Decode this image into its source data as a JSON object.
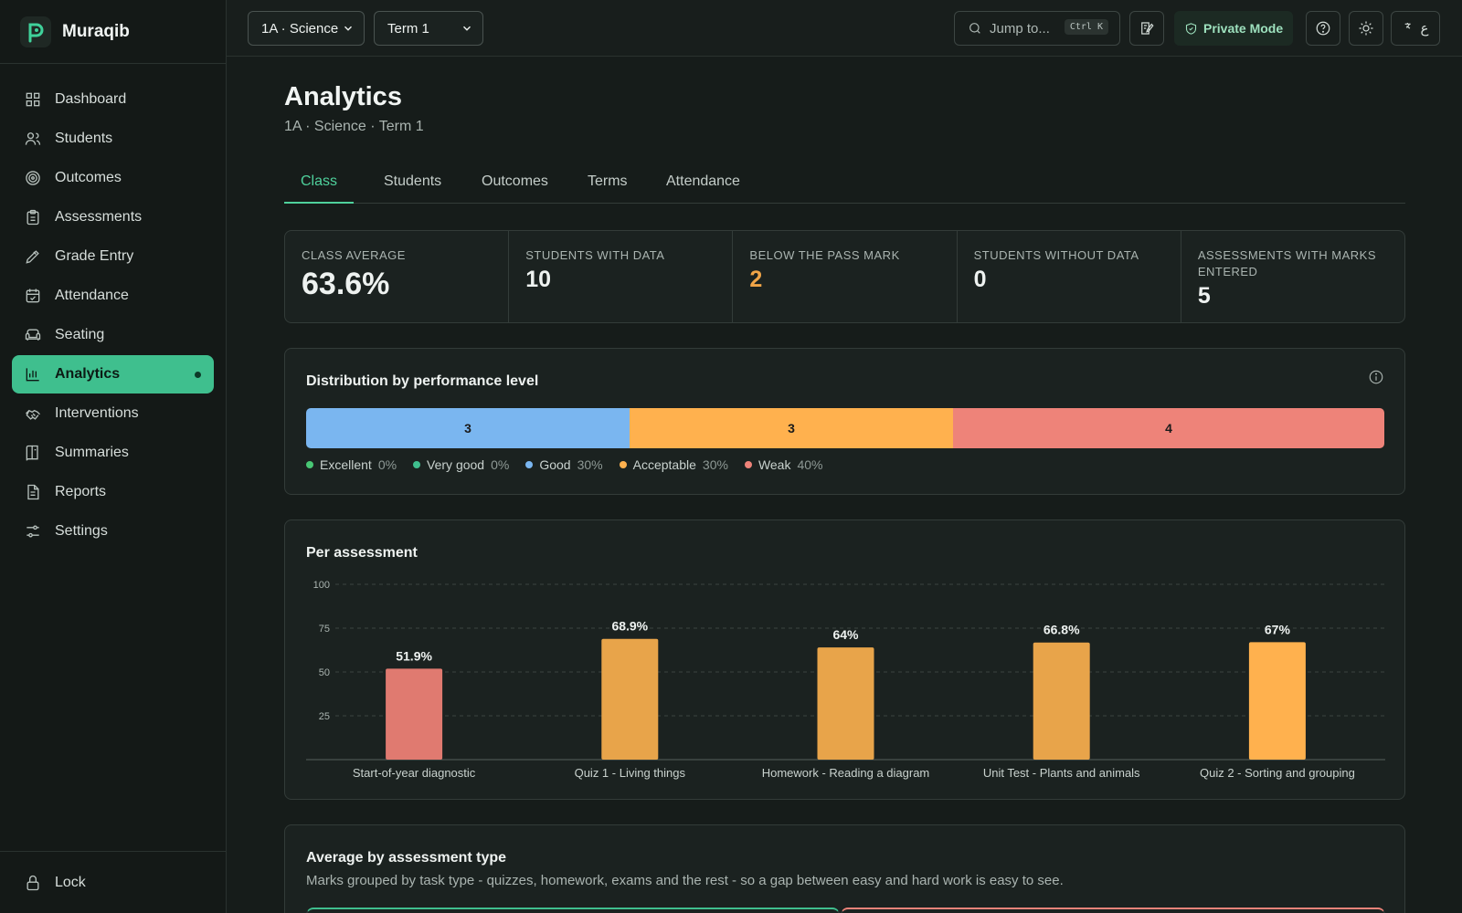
{
  "app": {
    "name": "Muraqib"
  },
  "sidebar": {
    "items": [
      {
        "label": "Dashboard",
        "icon": "dashboard-icon"
      },
      {
        "label": "Students",
        "icon": "users-icon"
      },
      {
        "label": "Outcomes",
        "icon": "target-icon"
      },
      {
        "label": "Assessments",
        "icon": "clipboard-icon"
      },
      {
        "label": "Grade Entry",
        "icon": "pencil-icon"
      },
      {
        "label": "Attendance",
        "icon": "calendar-check-icon"
      },
      {
        "label": "Seating",
        "icon": "sofa-icon"
      },
      {
        "label": "Analytics",
        "icon": "bar-chart-icon",
        "active": true
      },
      {
        "label": "Interventions",
        "icon": "handshake-icon"
      },
      {
        "label": "Summaries",
        "icon": "book-icon"
      },
      {
        "label": "Reports",
        "icon": "file-text-icon"
      },
      {
        "label": "Settings",
        "icon": "sliders-icon"
      }
    ],
    "lock_label": "Lock"
  },
  "topbar": {
    "class_select": "1A · Science",
    "term_select": "Term 1",
    "jump_placeholder": "Jump to...",
    "jump_shortcut": "Ctrl K",
    "private_mode": "Private Mode",
    "lang_label": "ع"
  },
  "page": {
    "title": "Analytics",
    "subtitle": "1A · Science · Term 1",
    "tabs": [
      "Class",
      "Students",
      "Outcomes",
      "Terms",
      "Attendance"
    ],
    "active_tab": "Class"
  },
  "stats": [
    {
      "label": "Class average",
      "value": "63.6%"
    },
    {
      "label": "Students with data",
      "value": "10"
    },
    {
      "label": "Below the pass mark",
      "value": "2"
    },
    {
      "label": "Students without data",
      "value": "0"
    },
    {
      "label": "Assessments with marks entered",
      "value": "5"
    }
  ],
  "distribution": {
    "title": "Distribution by performance level",
    "segments": [
      {
        "level": "Good",
        "count": "3",
        "fraction": 0.3,
        "color": "#7ab6f0"
      },
      {
        "level": "Acceptable",
        "count": "3",
        "fraction": 0.3,
        "color": "#ffb14e"
      },
      {
        "level": "Weak",
        "count": "4",
        "fraction": 0.4,
        "color": "#ee8379"
      }
    ],
    "legend": [
      {
        "label": "Excellent",
        "pct": "0%",
        "color": "#48c774"
      },
      {
        "label": "Very good",
        "pct": "0%",
        "color": "#3fbf8e"
      },
      {
        "label": "Good",
        "pct": "30%",
        "color": "#7ab6f0"
      },
      {
        "label": "Acceptable",
        "pct": "30%",
        "color": "#ffb14e"
      },
      {
        "label": "Weak",
        "pct": "40%",
        "color": "#ee8379"
      }
    ]
  },
  "per_assessment": {
    "title": "Per assessment"
  },
  "chart_data": {
    "type": "bar",
    "title": "Per assessment",
    "categories": [
      "Start-of-year diagnostic",
      "Quiz 1 - Living things",
      "Homework - Reading a diagram",
      "Unit Test - Plants and animals",
      "Quiz 2 - Sorting and grouping"
    ],
    "values": [
      51.9,
      68.9,
      64,
      66.8,
      67
    ],
    "value_labels": [
      "51.9%",
      "68.9%",
      "64%",
      "66.8%",
      "67%"
    ],
    "colors": [
      "#e07a70",
      "#e8a44a",
      "#e8a44a",
      "#e8a44a",
      "#ffb14e"
    ],
    "ylim": [
      0,
      100
    ],
    "yticks": [
      25,
      50,
      75,
      100
    ],
    "grid": true
  },
  "by_type": {
    "title": "Average by assessment type",
    "subtitle": "Marks grouped by task type - quizzes, homework, exams and the rest - so a gap between easy and hard work is easy to see."
  }
}
